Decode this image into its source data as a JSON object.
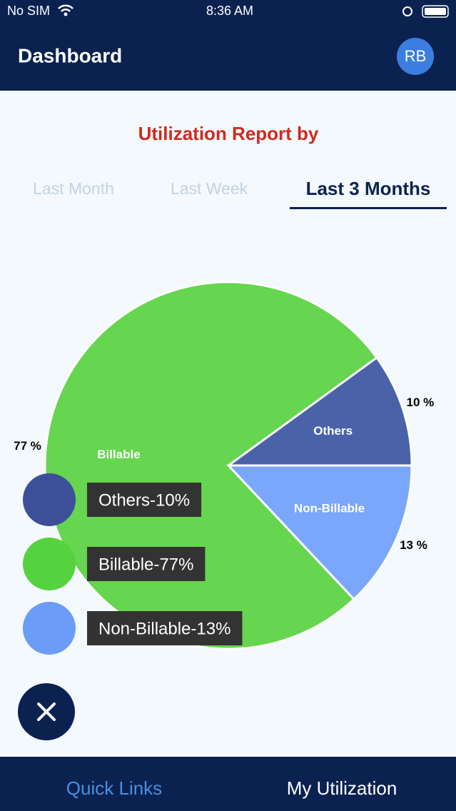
{
  "status_bar": {
    "carrier": "No SIM",
    "time": "8:36 AM"
  },
  "header": {
    "title": "Dashboard",
    "avatar": "RB"
  },
  "tabs": [
    "Last Month",
    "Last Week",
    "Last 3 Months"
  ],
  "chart_data": {
    "type": "pie",
    "title": "Utilization Report by",
    "categories": [
      "Others",
      "Non-Billable",
      "Billable"
    ],
    "values": [
      10,
      13,
      77
    ],
    "value_labels": [
      "10 %",
      "13 %",
      "77 %"
    ],
    "colors": [
      "#4a63a8",
      "#7aa7fb",
      "#66d54f"
    ]
  },
  "speed_dial": [
    {
      "label": "Others-10%",
      "color": "#3d4e9a"
    },
    {
      "label": "Billable-77%",
      "color": "#55d23e"
    },
    {
      "label": "Non-Billable-13%",
      "color": "#6b9cf7"
    }
  ],
  "bottom_nav": [
    "Quick Links",
    "My Utilization"
  ]
}
